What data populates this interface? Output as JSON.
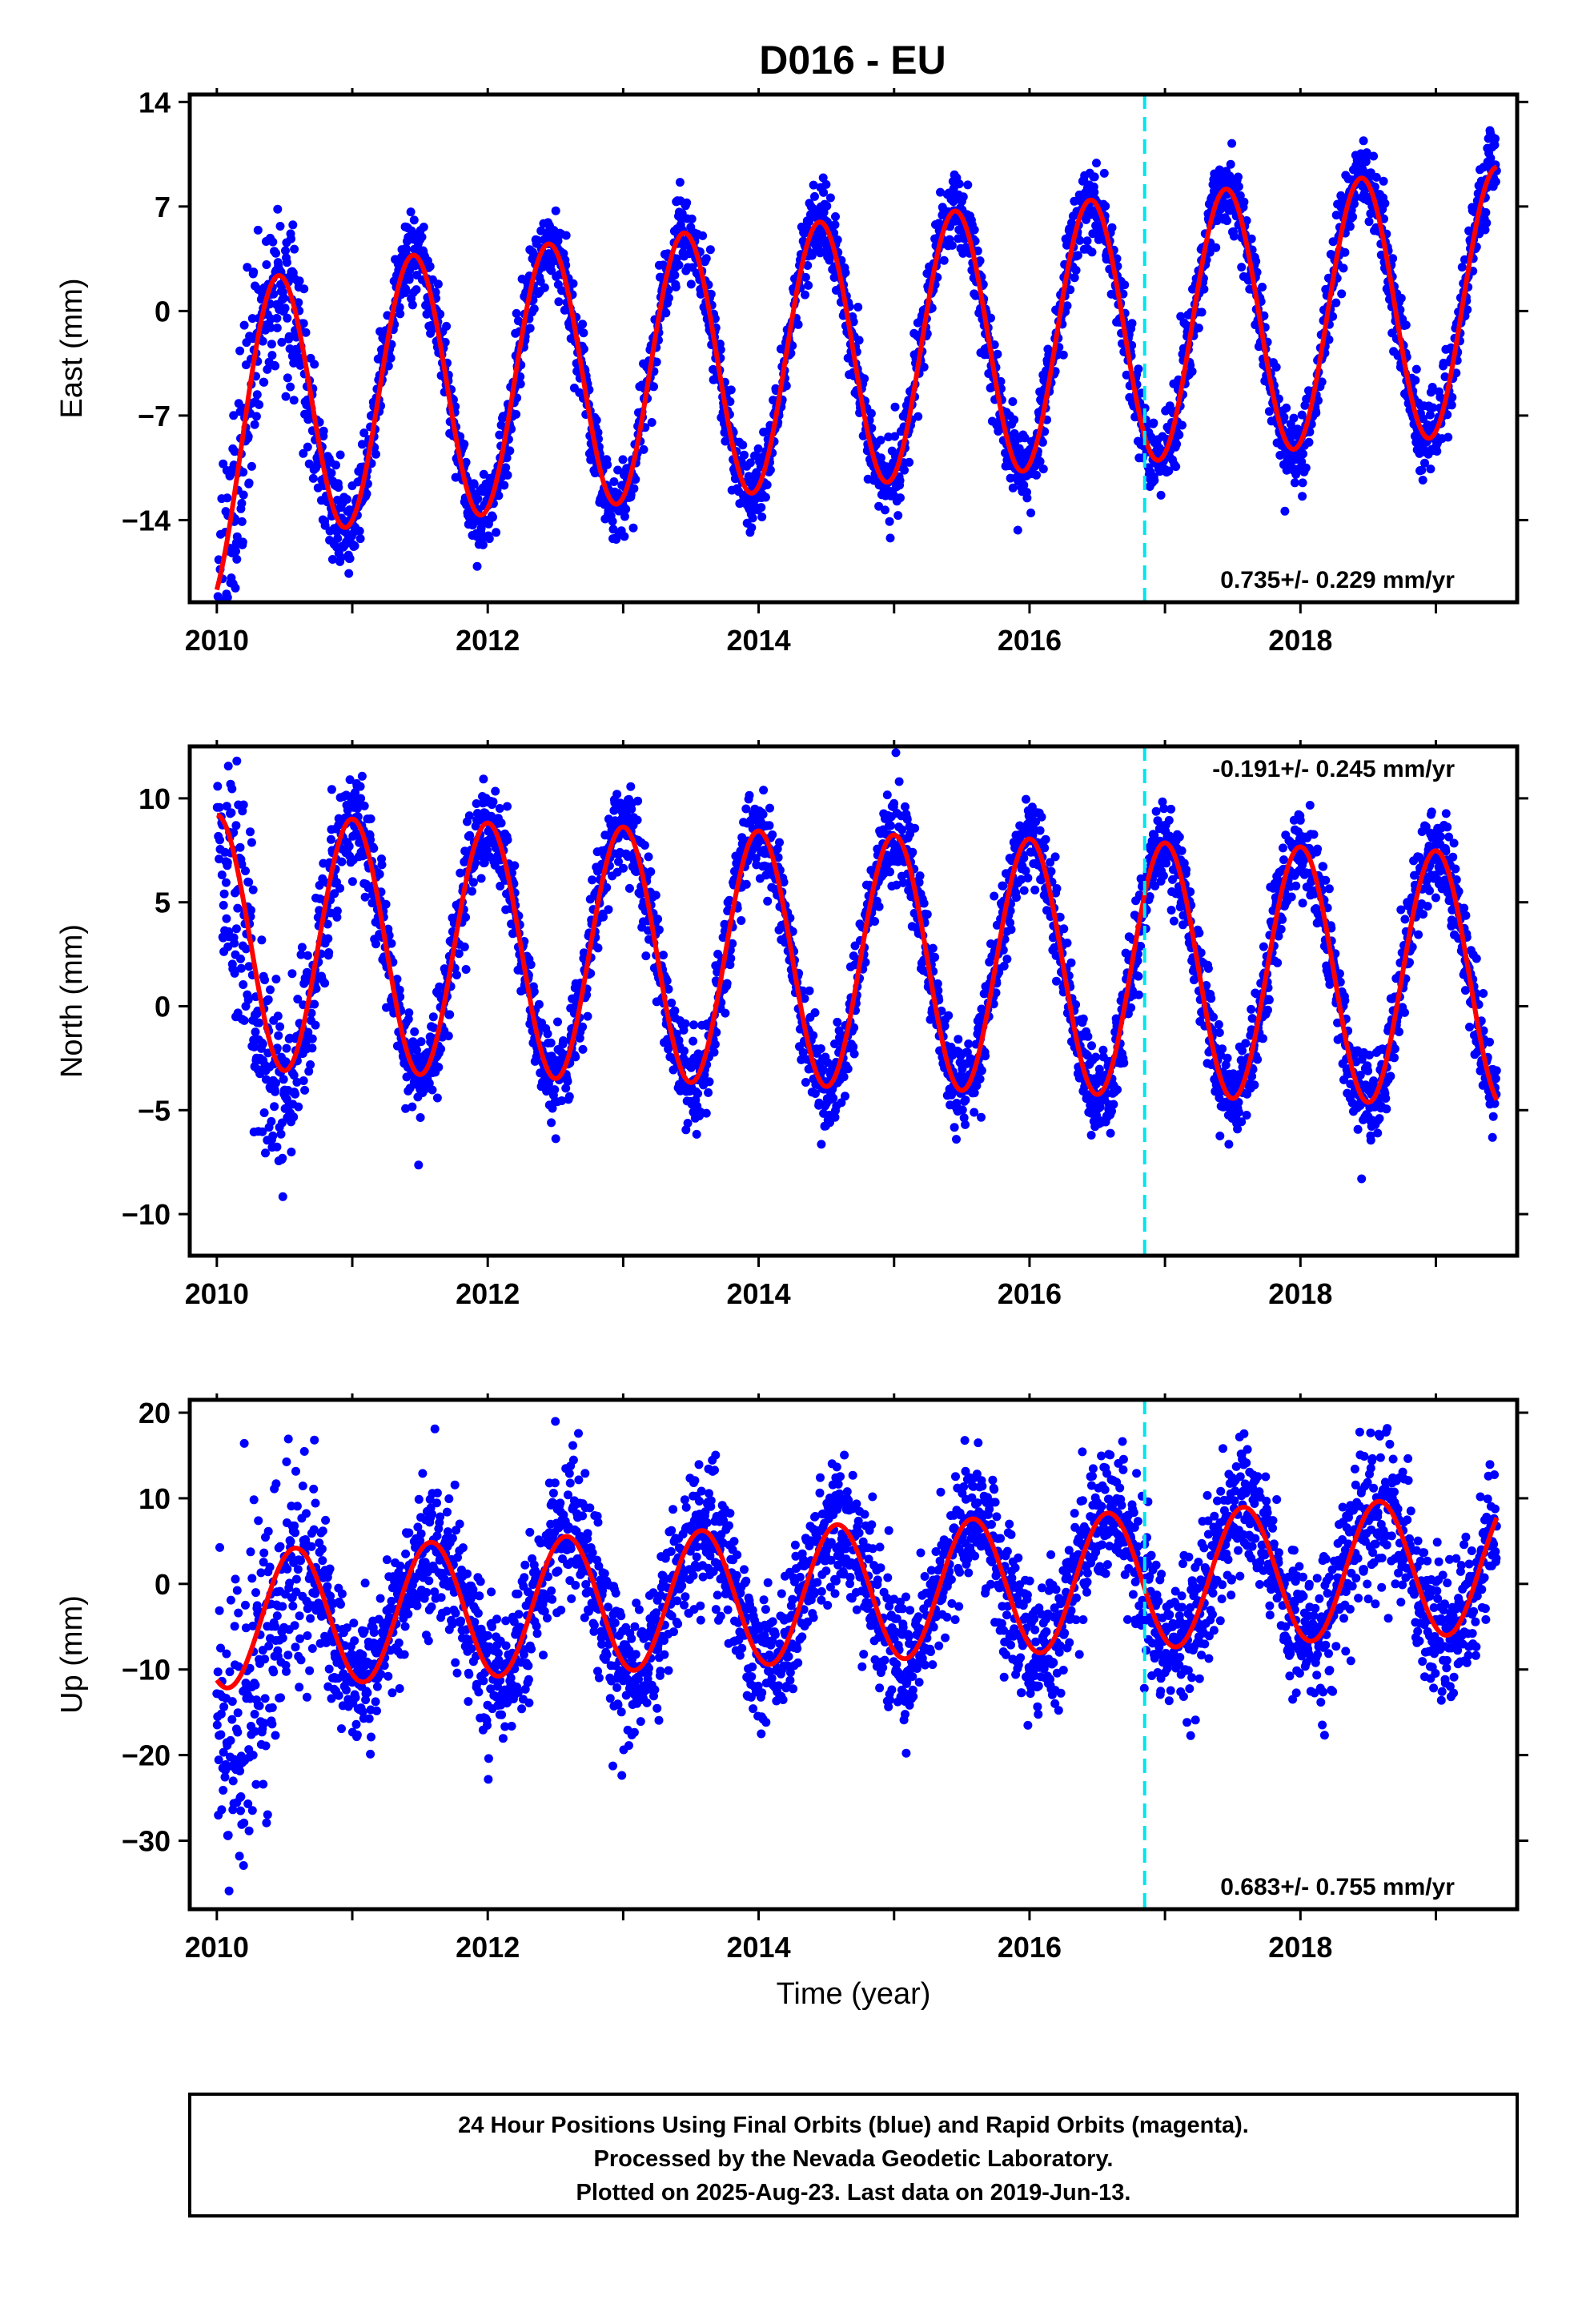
{
  "title": "D016 - EU",
  "colors": {
    "final_orbits": "#0000ff",
    "model_fit": "#ff0000",
    "marker_line": "#00e5ee",
    "frame": "#000000"
  },
  "chart_data": [
    {
      "type": "scatter",
      "name": "east",
      "ylabel": "East (mm)",
      "xlabel": "",
      "xlim": [
        2009.8,
        2019.6
      ],
      "ylim": [
        -19.5,
        14.5
      ],
      "yticks": [
        14,
        7,
        0,
        -7,
        -14
      ],
      "xticks": [
        2010,
        2012,
        2014,
        2016,
        2018
      ],
      "marker_line_x": 2016.85,
      "rate_text": "0.735+/- 0.229 mm/yr",
      "rate_position": "bottom-right",
      "fit": {
        "offset": -2.75,
        "rate": 0.735,
        "t0": 2014.7,
        "annual_amplitude": 8.9,
        "peak_phase": 0.45,
        "start_offset": -4.0,
        "start_tau": 0.25
      },
      "scatter": {
        "noise": 1.35,
        "first_year_extra_noise": 3.0,
        "first_year_offset": -1.8
      },
      "series": [
        {
          "name": "Final Orbits",
          "color": "#0000ff",
          "marker": "dot"
        },
        {
          "name": "Model fit",
          "color": "#ff0000",
          "marker": "line"
        }
      ]
    },
    {
      "type": "scatter",
      "name": "north",
      "ylabel": "North (mm)",
      "xlabel": "",
      "xlim": [
        2009.8,
        2019.6
      ],
      "ylim": [
        -12,
        12.5
      ],
      "yticks": [
        10,
        5,
        0,
        -5,
        -10
      ],
      "xticks": [
        2010,
        2012,
        2014,
        2016,
        2018
      ],
      "marker_line_x": 2016.85,
      "rate_text": "-0.191+/- 0.245 mm/yr",
      "rate_position": "top-right",
      "fit": {
        "offset": 2.2,
        "rate": -0.191,
        "t0": 2014.7,
        "annual_amplitude": 6.1,
        "peak_phase": 0.0,
        "start_offset": 0,
        "start_tau": 0.25
      },
      "scatter": {
        "noise": 1.1,
        "first_year_extra_noise": 2.2,
        "first_year_offset": -1.5
      },
      "series": [
        {
          "name": "Final Orbits",
          "color": "#0000ff",
          "marker": "dot"
        },
        {
          "name": "Model fit",
          "color": "#ff0000",
          "marker": "line"
        }
      ]
    },
    {
      "type": "scatter",
      "name": "up",
      "ylabel": "Up (mm)",
      "xlabel": "Time (year)",
      "xlim": [
        2009.8,
        2019.6
      ],
      "ylim": [
        -38,
        21.5
      ],
      "yticks": [
        20,
        10,
        0,
        -10,
        -20,
        -30
      ],
      "xticks": [
        2010,
        2012,
        2014,
        2016,
        2018
      ],
      "marker_line_x": 2016.85,
      "rate_text": "0.683+/- 0.755 mm/yr",
      "rate_position": "bottom-right",
      "fit": {
        "offset": -1.0,
        "rate": 0.683,
        "t0": 2014.7,
        "annual_amplitude": 8.0,
        "peak_phase": 0.58,
        "start_offset": 0,
        "start_tau": 0.25
      },
      "scatter": {
        "noise": 4.2,
        "first_year_extra_noise": 6.0,
        "first_year_offset": -6.0
      },
      "series": [
        {
          "name": "Final Orbits",
          "color": "#0000ff",
          "marker": "dot"
        },
        {
          "name": "Model fit",
          "color": "#ff0000",
          "marker": "line"
        }
      ]
    }
  ],
  "footer": {
    "line1": "24 Hour Positions Using Final Orbits (blue) and Rapid Orbits (magenta).",
    "line2": "Processed by the Nevada Geodetic Laboratory.",
    "line3": "Plotted on 2025-Aug-23. Last data on 2019-Jun-13."
  }
}
